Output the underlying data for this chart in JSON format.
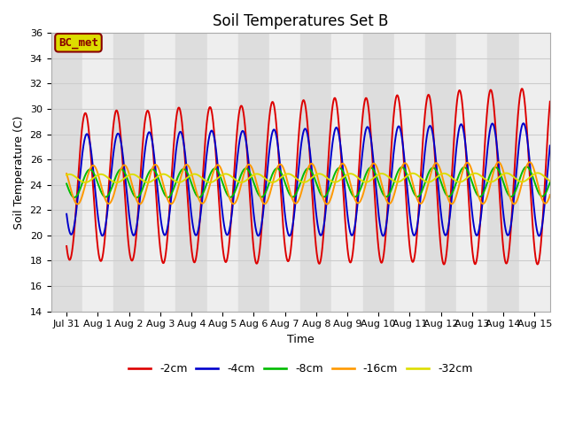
{
  "title": "Soil Temperatures Set B",
  "xlabel": "Time",
  "ylabel": "Soil Temperature (C)",
  "ylim": [
    14,
    36
  ],
  "xlim_start": -0.5,
  "xlim_end": 15.5,
  "annotation": "BC_met",
  "series_order": [
    "-2cm",
    "-4cm",
    "-8cm",
    "-16cm",
    "-32cm"
  ],
  "colors": {
    "-2cm": "#dd0000",
    "-4cm": "#0000cc",
    "-8cm": "#00bb00",
    "-16cm": "#ff9900",
    "-32cm": "#dddd00"
  },
  "xtick_labels": [
    "Jul 31",
    "Aug 1",
    "Aug 2",
    "Aug 3",
    "Aug 4",
    "Aug 5",
    "Aug 6",
    "Aug 7",
    "Aug 8",
    "Aug 9",
    "Aug 10",
    "Aug 11",
    "Aug 12",
    "Aug 13",
    "Aug 14",
    "Aug 15"
  ],
  "grid_color": "#cccccc",
  "plot_bg": "#eeeeee",
  "stripe_color": "#dddddd",
  "linewidth": 1.4,
  "annotation_bg": "#dddd00",
  "annotation_fg": "#880000",
  "annotation_fontsize": 9,
  "title_fontsize": 12,
  "axis_fontsize": 9,
  "tick_fontsize": 8,
  "legend_fontsize": 9
}
